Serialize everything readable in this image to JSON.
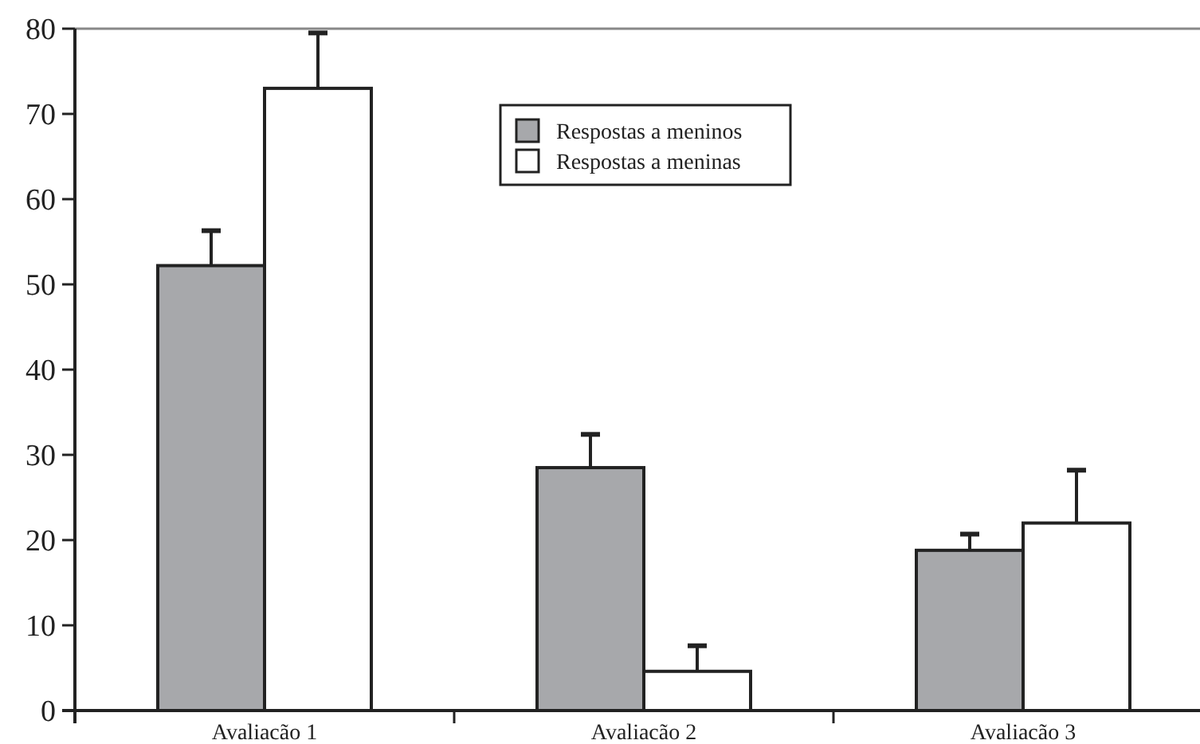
{
  "chart_data": {
    "type": "bar",
    "categories": [
      "Avaliacão 1",
      "Avaliacão 2",
      "Avaliacão 3"
    ],
    "series": [
      {
        "name": "Respostas a meninos",
        "color": "#a7a8ab",
        "values": [
          52.2,
          28.5,
          18.8
        ],
        "errors": [
          [
            52.2,
            56.3
          ],
          [
            28.5,
            32.4
          ],
          [
            18.8,
            20.7
          ]
        ]
      },
      {
        "name": "Respostas a meninas",
        "color": "#ffffff",
        "values": [
          73.0,
          4.6,
          22.0
        ],
        "errors": [
          [
            73.0,
            79.5
          ],
          [
            4.6,
            7.6
          ],
          [
            22.0,
            28.2
          ]
        ]
      }
    ],
    "ylim": [
      0,
      80
    ],
    "yticks": [
      0,
      10,
      20,
      30,
      40,
      50,
      60,
      70,
      80
    ],
    "grid": false,
    "legend": "top"
  }
}
